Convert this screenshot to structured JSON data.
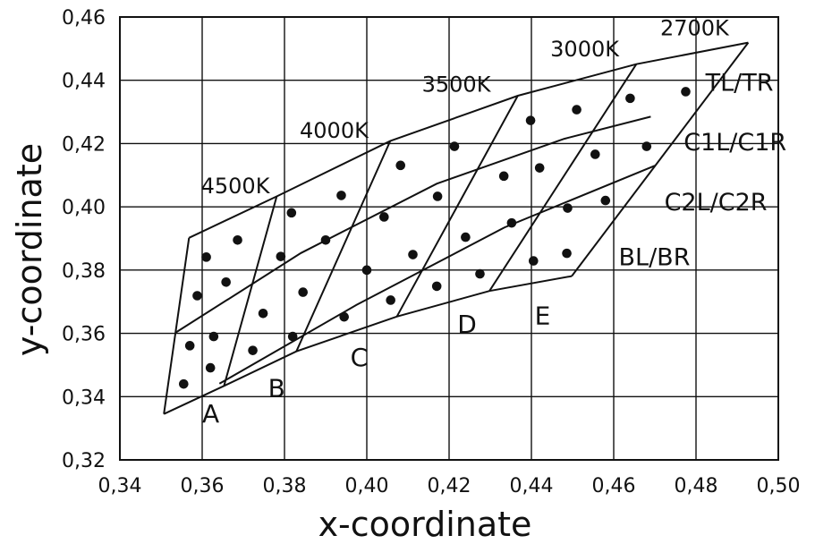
{
  "chart_data": {
    "type": "scatter",
    "title": "",
    "xlabel": "x-coordinate",
    "ylabel": "y-coordinate",
    "xlim": [
      0.34,
      0.5
    ],
    "ylim": [
      0.32,
      0.46
    ],
    "grid": true,
    "x_ticks": [
      "0,34",
      "0,36",
      "0,38",
      "0,40",
      "0,42",
      "0,44",
      "0,46",
      "0,48",
      "0,50"
    ],
    "y_ticks": [
      "0,32",
      "0,34",
      "0,36",
      "0,38",
      "0,40",
      "0,42",
      "0,44",
      "0,46"
    ],
    "x_tick_values": [
      0.34,
      0.36,
      0.38,
      0.4,
      0.42,
      0.44,
      0.46,
      0.48,
      0.5
    ],
    "y_tick_values": [
      0.32,
      0.34,
      0.36,
      0.38,
      0.4,
      0.42,
      0.44,
      0.46
    ],
    "boundary_lines": [
      {
        "name": "top",
        "points": [
          [
            0.3568,
            0.3902
          ],
          [
            0.3781,
            0.4033
          ],
          [
            0.4057,
            0.4208
          ],
          [
            0.4367,
            0.4351
          ],
          [
            0.4655,
            0.4451
          ],
          [
            0.4927,
            0.4519
          ]
        ]
      },
      {
        "name": "mid-upper",
        "points": [
          [
            0.3535,
            0.3602
          ],
          [
            0.384,
            0.3854
          ],
          [
            0.417,
            0.4073
          ],
          [
            0.448,
            0.4215
          ],
          [
            0.469,
            0.4285
          ]
        ]
      },
      {
        "name": "mid-lower",
        "points": [
          [
            0.3642,
            0.3441
          ],
          [
            0.3975,
            0.369
          ],
          [
            0.4335,
            0.3935
          ],
          [
            0.47,
            0.413
          ]
        ]
      },
      {
        "name": "bottom",
        "points": [
          [
            0.3507,
            0.3345
          ],
          [
            0.3653,
            0.3434
          ],
          [
            0.3829,
            0.3543
          ],
          [
            0.4073,
            0.3653
          ],
          [
            0.4298,
            0.3734
          ],
          [
            0.4498,
            0.3781
          ]
        ]
      },
      {
        "name": "A/B",
        "points": [
          [
            0.3653,
            0.3434
          ],
          [
            0.3781,
            0.4033
          ]
        ]
      },
      {
        "name": "B/C",
        "points": [
          [
            0.3829,
            0.3543
          ],
          [
            0.4057,
            0.4208
          ]
        ]
      },
      {
        "name": "C/D",
        "points": [
          [
            0.4073,
            0.3653
          ],
          [
            0.4367,
            0.4351
          ]
        ]
      },
      {
        "name": "D/E",
        "points": [
          [
            0.4298,
            0.3734
          ],
          [
            0.4655,
            0.4451
          ]
        ]
      },
      {
        "name": "left-edge",
        "points": [
          [
            0.3507,
            0.3345
          ],
          [
            0.3568,
            0.3902
          ]
        ]
      },
      {
        "name": "right-edge",
        "points": [
          [
            0.4498,
            0.3781
          ],
          [
            0.4927,
            0.4519
          ]
        ]
      }
    ],
    "points": [
      [
        0.3555,
        0.344
      ],
      [
        0.357,
        0.3561
      ],
      [
        0.3588,
        0.3719
      ],
      [
        0.361,
        0.3841
      ],
      [
        0.362,
        0.3491
      ],
      [
        0.3628,
        0.359
      ],
      [
        0.3658,
        0.3762
      ],
      [
        0.3686,
        0.3895
      ],
      [
        0.3723,
        0.3546
      ],
      [
        0.3748,
        0.3663
      ],
      [
        0.3791,
        0.3843
      ],
      [
        0.3817,
        0.3981
      ],
      [
        0.382,
        0.359
      ],
      [
        0.3845,
        0.373
      ],
      [
        0.39,
        0.3895
      ],
      [
        0.3938,
        0.4036
      ],
      [
        0.3945,
        0.3652
      ],
      [
        0.4,
        0.38
      ],
      [
        0.4042,
        0.3968
      ],
      [
        0.4082,
        0.4131
      ],
      [
        0.4058,
        0.3705
      ],
      [
        0.4112,
        0.3849
      ],
      [
        0.417,
        0.3749
      ],
      [
        0.4172,
        0.4033
      ],
      [
        0.4213,
        0.4191
      ],
      [
        0.424,
        0.3904
      ],
      [
        0.4275,
        0.3788
      ],
      [
        0.4333,
        0.4097
      ],
      [
        0.4352,
        0.3949
      ],
      [
        0.4398,
        0.4273
      ],
      [
        0.4405,
        0.3829
      ],
      [
        0.442,
        0.4123
      ],
      [
        0.4486,
        0.3853
      ],
      [
        0.4488,
        0.3996
      ],
      [
        0.451,
        0.4307
      ],
      [
        0.4555,
        0.4166
      ],
      [
        0.458,
        0.402
      ],
      [
        0.464,
        0.4343
      ],
      [
        0.468,
        0.4191
      ],
      [
        0.4775,
        0.4364
      ]
    ],
    "cct_labels": [
      {
        "text": "4500K",
        "x": 0.3597,
        "y": 0.4043
      },
      {
        "text": "4000K",
        "x": 0.3837,
        "y": 0.4218
      },
      {
        "text": "3500K",
        "x": 0.4134,
        "y": 0.4364
      },
      {
        "text": "3000K",
        "x": 0.4446,
        "y": 0.4476
      },
      {
        "text": "2700K",
        "x": 0.4713,
        "y": 0.4542
      }
    ],
    "zone_labels": [
      {
        "text": "A",
        "x": 0.36,
        "y": 0.3319
      },
      {
        "text": "B",
        "x": 0.376,
        "y": 0.34
      },
      {
        "text": "C",
        "x": 0.396,
        "y": 0.3497
      },
      {
        "text": "D",
        "x": 0.422,
        "y": 0.3601
      },
      {
        "text": "E",
        "x": 0.4408,
        "y": 0.3628
      }
    ],
    "region_labels": [
      {
        "text": "TL/TR",
        "x": 0.4823,
        "y": 0.4366
      },
      {
        "text": "C1L/C1R",
        "x": 0.477,
        "y": 0.4178
      },
      {
        "text": "C2L/C2R",
        "x": 0.4723,
        "y": 0.3989
      },
      {
        "text": "BL/BR",
        "x": 0.4612,
        "y": 0.3815
      }
    ]
  }
}
